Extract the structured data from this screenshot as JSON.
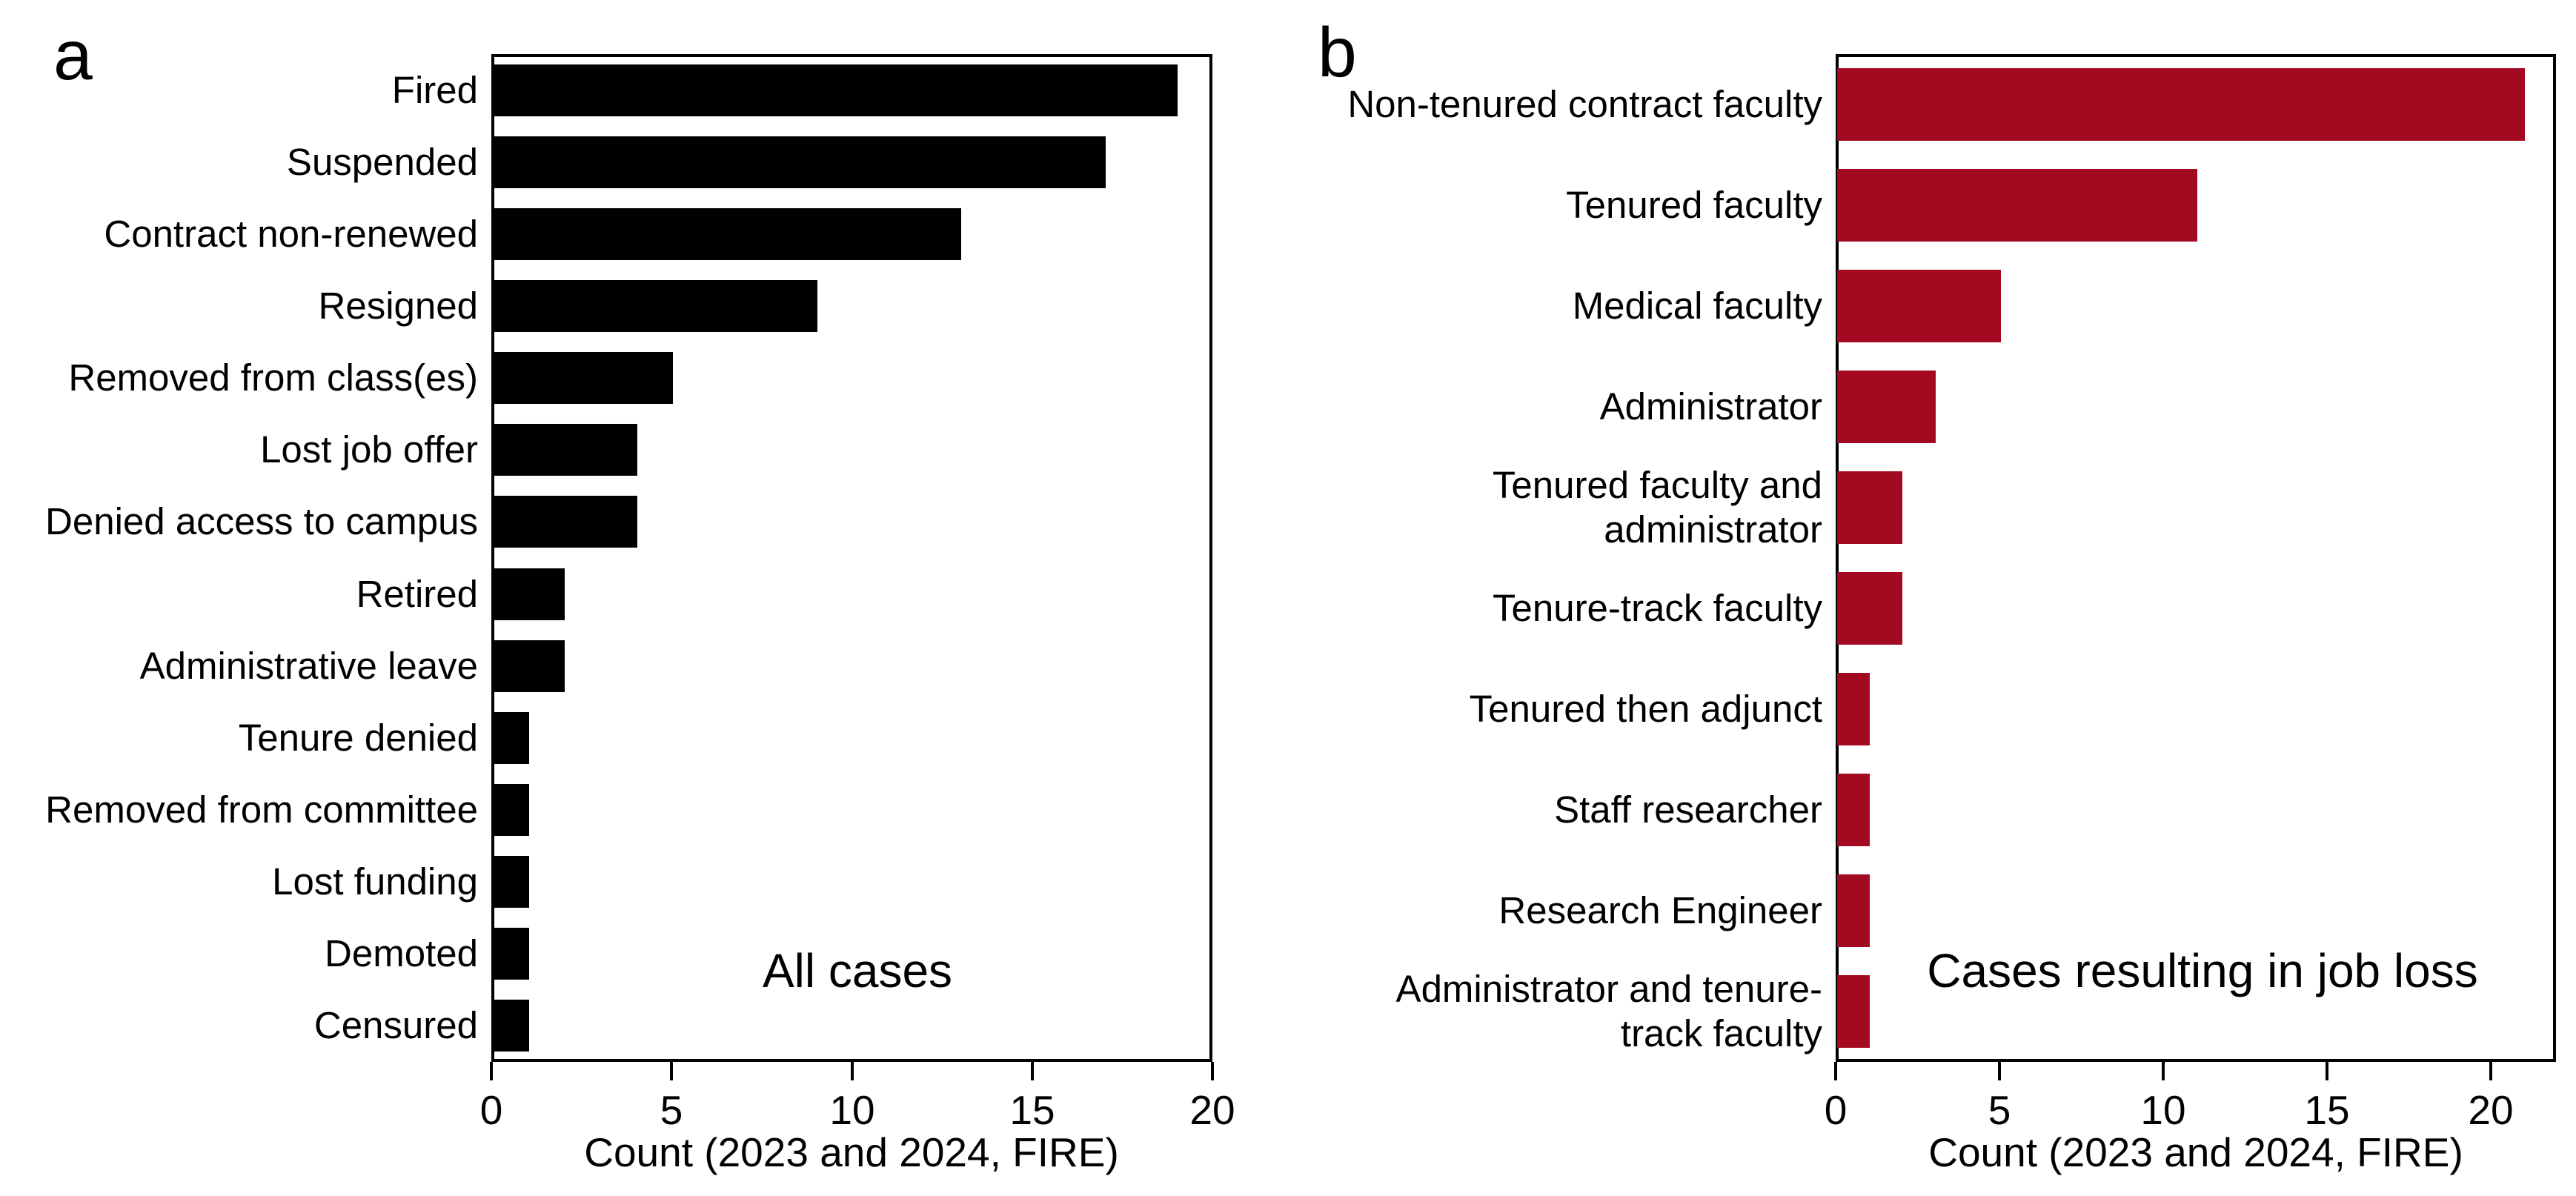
{
  "figure": {
    "panels": [
      {
        "letter": "a",
        "annotation": "All cases",
        "xlabel": "Count (2023 and 2024, FIRE)"
      },
      {
        "letter": "b",
        "annotation": "Cases resulting in job loss",
        "xlabel": "Count (2023 and 2024, FIRE)"
      }
    ]
  },
  "chart_data": [
    {
      "type": "bar",
      "orientation": "horizontal",
      "panel": "a",
      "title": "All cases",
      "categories": [
        "Fired",
        "Suspended",
        "Contract non-renewed",
        "Resigned",
        "Removed from class(es)",
        "Lost job offer",
        "Denied access to campus",
        "Retired",
        "Administrative leave",
        "Tenure denied",
        "Removed from committee",
        "Lost funding",
        "Demoted",
        "Censured"
      ],
      "category_label_lines": [
        [
          "Fired"
        ],
        [
          "Suspended"
        ],
        [
          "Contract non-renewed"
        ],
        [
          "Resigned"
        ],
        [
          "Removed from class(es)"
        ],
        [
          "Lost job offer"
        ],
        [
          "Denied access to campus"
        ],
        [
          "Retired"
        ],
        [
          "Administrative leave"
        ],
        [
          "Tenure denied"
        ],
        [
          "Removed from committee"
        ],
        [
          "Lost funding"
        ],
        [
          "Demoted"
        ],
        [
          "Censured"
        ]
      ],
      "values": [
        19,
        17,
        13,
        9,
        5,
        4,
        4,
        2,
        2,
        1,
        1,
        1,
        1,
        1
      ],
      "xlabel": "Count (2023 and 2024, FIRE)",
      "xlim": [
        0,
        20
      ],
      "xticks": [
        0,
        5,
        10,
        15,
        20
      ],
      "bar_color": "#000000",
      "legend": "none",
      "grid": false
    },
    {
      "type": "bar",
      "orientation": "horizontal",
      "panel": "b",
      "title": "Cases resulting in job loss",
      "categories": [
        "Non-tenured contract faculty",
        "Tenured faculty",
        "Medical faculty",
        "Administrator",
        "Tenured faculty and administrator",
        "Tenure-track faculty",
        "Tenured then adjunct",
        "Staff researcher",
        "Research Engineer",
        "Administrator and tenure-track faculty"
      ],
      "category_label_lines": [
        [
          "Non-tenured contract faculty"
        ],
        [
          "Tenured faculty"
        ],
        [
          "Medical faculty"
        ],
        [
          "Administrator"
        ],
        [
          "Tenured faculty and",
          "administrator"
        ],
        [
          "Tenure-track faculty"
        ],
        [
          "Tenured then adjunct"
        ],
        [
          "Staff researcher"
        ],
        [
          "Research Engineer"
        ],
        [
          "Administrator and tenure-",
          "track faculty"
        ]
      ],
      "values": [
        21,
        11,
        5,
        3,
        2,
        2,
        1,
        1,
        1,
        1
      ],
      "xlabel": "Count (2023 and 2024, FIRE)",
      "xlim": [
        0,
        22
      ],
      "xticks": [
        0,
        5,
        10,
        15,
        20
      ],
      "bar_color": "#A30A21",
      "legend": "none",
      "grid": false
    }
  ]
}
